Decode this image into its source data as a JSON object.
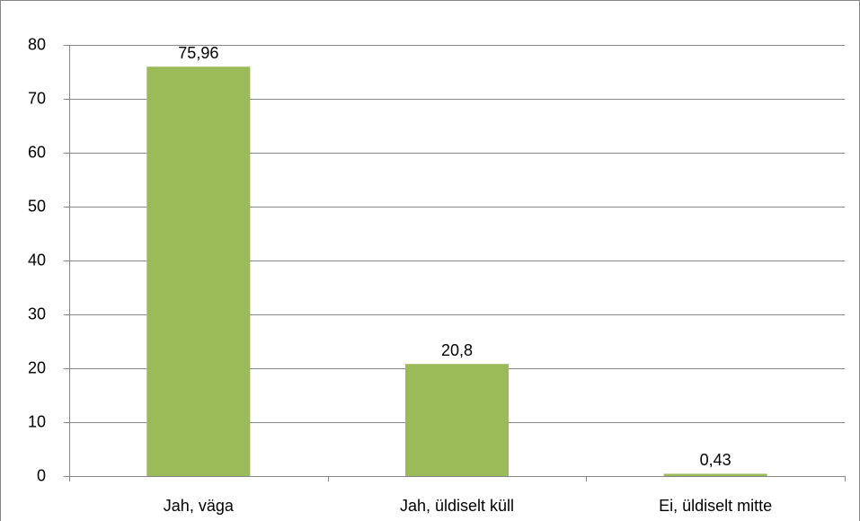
{
  "chart_data": {
    "type": "bar",
    "categories": [
      "Jah, väga",
      "Jah, üldiselt küll",
      "Ei, üldiselt mitte"
    ],
    "values": [
      75.96,
      20.8,
      0.43
    ],
    "value_labels": [
      "75,96",
      "20,8",
      "0,43"
    ],
    "color": "#9bbb59",
    "ylim": [
      0,
      80
    ],
    "yticks": [
      0,
      10,
      20,
      30,
      40,
      50,
      60,
      70,
      80
    ],
    "grid": true
  }
}
